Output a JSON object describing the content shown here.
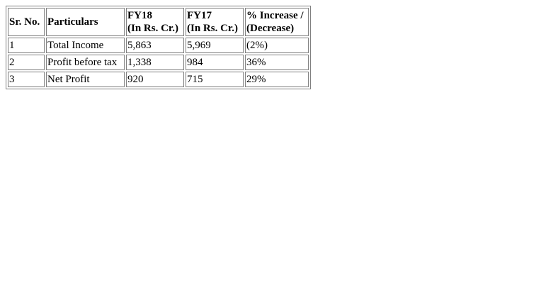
{
  "table": {
    "headers": [
      {
        "line1": "Sr. No.",
        "line2": ""
      },
      {
        "line1": "Particulars",
        "line2": ""
      },
      {
        "line1": "FY18",
        "line2": "(In Rs. Cr.)"
      },
      {
        "line1": "FY17",
        "line2": "(In Rs. Cr.)"
      },
      {
        "line1": "% Increase /",
        "line2": "(Decrease)"
      }
    ],
    "rows": [
      [
        "1",
        "Total Income",
        "5,863",
        "5,969",
        "(2%)"
      ],
      [
        "2",
        "Profit before tax",
        "1,338",
        "984",
        "36%"
      ],
      [
        "3",
        "Net Profit",
        "920",
        "715",
        "29%"
      ]
    ]
  }
}
